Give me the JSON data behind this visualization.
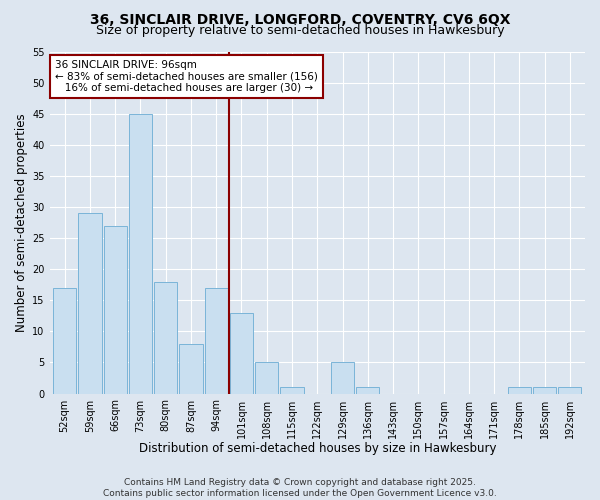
{
  "title": "36, SINCLAIR DRIVE, LONGFORD, COVENTRY, CV6 6QX",
  "subtitle": "Size of property relative to semi-detached houses in Hawkesbury",
  "xlabel": "Distribution of semi-detached houses by size in Hawkesbury",
  "ylabel": "Number of semi-detached properties",
  "categories": [
    "52sqm",
    "59sqm",
    "66sqm",
    "73sqm",
    "80sqm",
    "87sqm",
    "94sqm",
    "101sqm",
    "108sqm",
    "115sqm",
    "122sqm",
    "129sqm",
    "136sqm",
    "143sqm",
    "150sqm",
    "157sqm",
    "164sqm",
    "171sqm",
    "178sqm",
    "185sqm",
    "192sqm"
  ],
  "values": [
    17,
    29,
    27,
    45,
    18,
    8,
    17,
    13,
    5,
    1,
    0,
    5,
    1,
    0,
    0,
    0,
    0,
    0,
    1,
    1,
    1
  ],
  "bar_color": "#c9dff0",
  "bar_edge_color": "#7ab4d8",
  "highlight_line_color": "#8b0000",
  "highlight_bar_index": 6,
  "annotation_text": "36 SINCLAIR DRIVE: 96sqm\n← 83% of semi-detached houses are smaller (156)\n   16% of semi-detached houses are larger (30) →",
  "annotation_box_edgecolor": "#8b0000",
  "annotation_box_facecolor": "#ffffff",
  "ylim": [
    0,
    55
  ],
  "yticks": [
    0,
    5,
    10,
    15,
    20,
    25,
    30,
    35,
    40,
    45,
    50,
    55
  ],
  "footer": "Contains HM Land Registry data © Crown copyright and database right 2025.\nContains public sector information licensed under the Open Government Licence v3.0.",
  "bg_color": "#dde6f0",
  "plot_bg_color": "#dde6f0",
  "grid_color": "#ffffff",
  "title_fontsize": 10,
  "subtitle_fontsize": 9,
  "axis_label_fontsize": 8.5,
  "tick_fontsize": 7,
  "footer_fontsize": 6.5,
  "annotation_fontsize": 7.5
}
